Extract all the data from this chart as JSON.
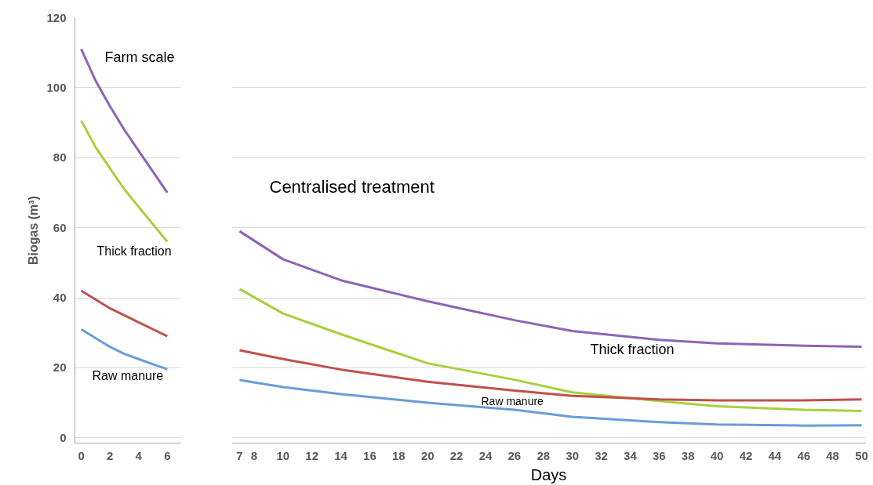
{
  "chart_data": [
    {
      "type": "line",
      "ylabel": "Biogas (m³)",
      "x": [
        0,
        1,
        2,
        3,
        4,
        5,
        6
      ],
      "xlim": [
        -0.44,
        6.94
      ],
      "xticks": [
        0,
        2,
        4,
        6
      ],
      "ylim": [
        -1.5,
        120
      ],
      "yticks": [
        0,
        20,
        40,
        60,
        80,
        100,
        120
      ],
      "grid": "y",
      "series": [
        {
          "color": "#8e63b5",
          "values": [
            111,
            102,
            94.7,
            88,
            82,
            76,
            70
          ]
        },
        {
          "color": "#a9cf3c",
          "values": [
            90.6,
            83,
            77,
            71,
            66,
            61,
            56
          ]
        },
        {
          "color": "#c0504d",
          "values": [
            42,
            39.5,
            37,
            35,
            33,
            31,
            29
          ]
        },
        {
          "color": "#6b9bd9",
          "values": [
            31,
            28.5,
            26,
            24,
            22.5,
            21,
            19.6
          ]
        }
      ],
      "annotations": [
        "Farm scale",
        "Thick fraction",
        "Raw manure"
      ]
    },
    {
      "type": "line",
      "xlabel": "Days",
      "x": [
        7,
        10,
        14,
        20,
        26,
        30,
        36,
        40,
        46,
        50
      ],
      "xlim": [
        6.46,
        50.27
      ],
      "xticks": [
        7,
        8,
        10,
        12,
        14,
        16,
        18,
        20,
        22,
        24,
        26,
        28,
        30,
        32,
        34,
        36,
        38,
        40,
        42,
        44,
        46,
        48,
        50
      ],
      "ylim": [
        -1.5,
        120
      ],
      "yticks": [
        0,
        20,
        40,
        60,
        80,
        100,
        120
      ],
      "grid": "y",
      "tick_labels": "x",
      "series": [
        {
          "color": "#8e63b5",
          "values": [
            59,
            51,
            45,
            39,
            33.6,
            30.5,
            28,
            27,
            26.3,
            26
          ]
        },
        {
          "color": "#a9cf3c",
          "values": [
            42.5,
            35.5,
            29.6,
            21.3,
            16.6,
            13,
            10.5,
            9,
            8,
            7.7
          ]
        },
        {
          "color": "#c0504d",
          "values": [
            25,
            22.5,
            19.5,
            16,
            13.5,
            12,
            11,
            10.7,
            10.7,
            11
          ]
        },
        {
          "color": "#6b9bd9",
          "values": [
            16.5,
            14.5,
            12.5,
            10,
            8,
            6,
            4.5,
            3.8,
            3.5,
            3.6
          ]
        }
      ],
      "annotations": [
        "Centralised treatment",
        "Thick fraction",
        "Raw manure"
      ]
    }
  ]
}
